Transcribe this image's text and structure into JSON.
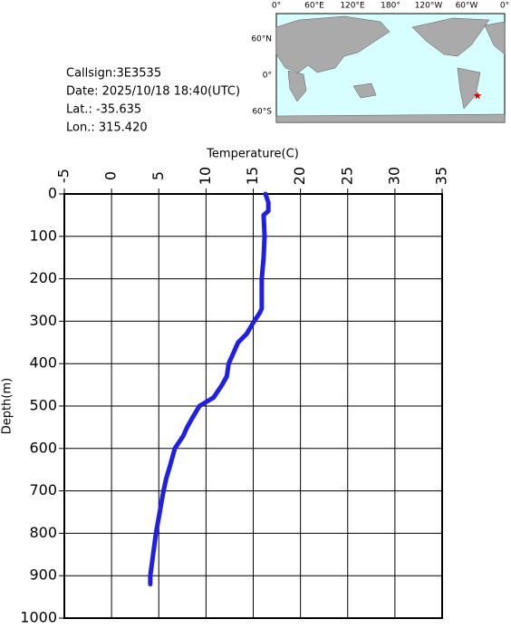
{
  "info": {
    "lines": [
      "Callsign:3E3535",
      "Date:  2025/10/18 18:40(UTC)",
      "Lat.:  -35.635",
      "Lon.:  315.420"
    ]
  },
  "map": {
    "top_labels": [
      "0°",
      "60°E",
      "120°E",
      "180°",
      "120°W",
      "60°W",
      "0°"
    ],
    "left_labels": [
      "60°N",
      "0°",
      "60°S"
    ]
  },
  "chart_data": {
    "type": "line",
    "x_label": "Temperature(C)",
    "y_label": "Depth(m)",
    "color": "#1f1fe6",
    "xlim": [
      -5,
      35
    ],
    "xticks": [
      -5,
      0,
      5,
      10,
      15,
      20,
      25,
      30,
      35
    ],
    "ylim": [
      0,
      1000
    ],
    "yticks": [
      0,
      100,
      200,
      300,
      400,
      500,
      600,
      700,
      800,
      900,
      1000
    ],
    "y_inverted": true,
    "grid": true,
    "x": [
      16.3,
      16.6,
      16.6,
      16.1,
      16.2,
      16.1,
      15.9,
      15.9,
      15.9,
      15.7,
      15.1,
      14.3,
      13.4,
      12.8,
      12.4,
      12.2,
      11.7,
      10.8,
      9.3,
      8.5,
      8.0,
      7.6,
      6.7,
      6.2,
      5.8,
      5.5,
      5.1,
      4.7,
      4.4,
      4.1,
      4.1
    ],
    "values": [
      0,
      20,
      40,
      50,
      100,
      150,
      200,
      250,
      270,
      280,
      300,
      330,
      350,
      380,
      400,
      430,
      450,
      480,
      500,
      530,
      550,
      570,
      600,
      640,
      670,
      700,
      750,
      800,
      850,
      900,
      920
    ]
  }
}
